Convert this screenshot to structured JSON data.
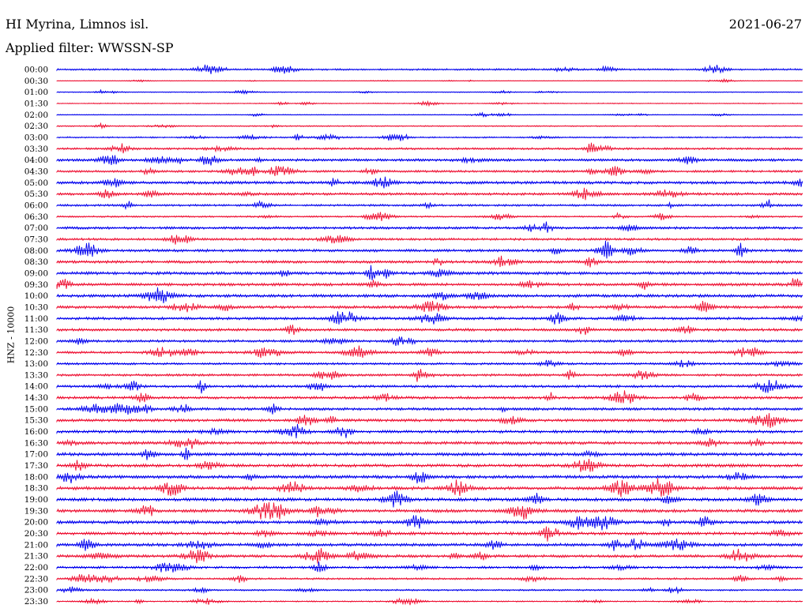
{
  "header": {
    "station": "HI Myrina, Limnos isl.",
    "date": "2021-06-27",
    "filter": "Applied filter: WWSSN-SP"
  },
  "colors": {
    "even_hour_trace": "#0000ee",
    "half_hour_trace": "#ee1133",
    "background": "#ffffff"
  },
  "chart_data": {
    "type": "line",
    "title": "HI Myrina, Limnos isl.",
    "ylabel": "HNZ - 10000",
    "xlabel": "",
    "grid": false,
    "rows": [
      {
        "label": "00:00",
        "amp": 1.1
      },
      {
        "label": "00:30",
        "amp": 0.35
      },
      {
        "label": "01:00",
        "amp": 0.5
      },
      {
        "label": "01:30",
        "amp": 0.6
      },
      {
        "label": "02:00",
        "amp": 0.45
      },
      {
        "label": "02:30",
        "amp": 0.7
      },
      {
        "label": "03:00",
        "amp": 0.9
      },
      {
        "label": "03:30",
        "amp": 1.3
      },
      {
        "label": "04:00",
        "amp": 1.6
      },
      {
        "label": "04:30",
        "amp": 1.4
      },
      {
        "label": "05:00",
        "amp": 1.8
      },
      {
        "label": "05:30",
        "amp": 1.6
      },
      {
        "label": "06:00",
        "amp": 1.3
      },
      {
        "label": "06:30",
        "amp": 1.0
      },
      {
        "label": "07:00",
        "amp": 1.6
      },
      {
        "label": "07:30",
        "amp": 1.5
      },
      {
        "label": "08:00",
        "amp": 1.7
      },
      {
        "label": "08:30",
        "amp": 1.7
      },
      {
        "label": "09:00",
        "amp": 1.9
      },
      {
        "label": "09:30",
        "amp": 1.8
      },
      {
        "label": "10:00",
        "amp": 1.9
      },
      {
        "label": "10:30",
        "amp": 1.8
      },
      {
        "label": "11:00",
        "amp": 1.7
      },
      {
        "label": "11:30",
        "amp": 1.7
      },
      {
        "label": "12:00",
        "amp": 1.6
      },
      {
        "label": "12:30",
        "amp": 1.5
      },
      {
        "label": "13:00",
        "amp": 1.4
      },
      {
        "label": "13:30",
        "amp": 1.5
      },
      {
        "label": "14:00",
        "amp": 1.6
      },
      {
        "label": "14:30",
        "amp": 1.7
      },
      {
        "label": "15:00",
        "amp": 1.7
      },
      {
        "label": "15:30",
        "amp": 1.8
      },
      {
        "label": "16:00",
        "amp": 1.8
      },
      {
        "label": "16:30",
        "amp": 1.9
      },
      {
        "label": "17:00",
        "amp": 2.0
      },
      {
        "label": "17:30",
        "amp": 2.0
      },
      {
        "label": "18:00",
        "amp": 2.0
      },
      {
        "label": "18:30",
        "amp": 2.1
      },
      {
        "label": "19:00",
        "amp": 2.0
      },
      {
        "label": "19:30",
        "amp": 2.0
      },
      {
        "label": "20:00",
        "amp": 2.0
      },
      {
        "label": "20:30",
        "amp": 1.9
      },
      {
        "label": "21:00",
        "amp": 1.9
      },
      {
        "label": "21:30",
        "amp": 1.8
      },
      {
        "label": "22:00",
        "amp": 1.5
      },
      {
        "label": "22:30",
        "amp": 1.2
      },
      {
        "label": "23:00",
        "amp": 1.0
      },
      {
        "label": "23:30",
        "amp": 0.8
      }
    ]
  }
}
